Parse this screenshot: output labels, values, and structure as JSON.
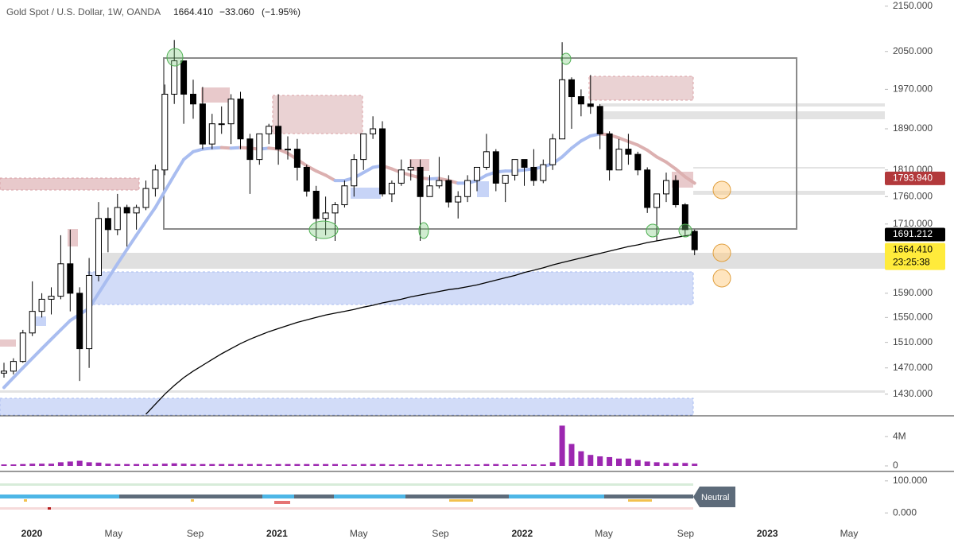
{
  "chart_data": {
    "type": "candlestick",
    "header": {
      "symbol": "Gold Spot / U.S. Dollar, 1W, OANDA",
      "last": "1664.410",
      "change": "−33.060",
      "change_pct": "(−1.95%)"
    },
    "log_scale": true,
    "ylim": [
      1399,
      2164
    ],
    "yticks": [
      {
        "value": 2150,
        "label": "2150.000"
      },
      {
        "value": 2050,
        "label": "2050.000"
      },
      {
        "value": 1970,
        "label": "1970.000"
      },
      {
        "value": 1890,
        "label": "1890.000"
      },
      {
        "value": 1810,
        "label": "1810.000"
      },
      {
        "value": 1760,
        "label": "1760.000"
      },
      {
        "value": 1710,
        "label": "1710.000"
      },
      {
        "value": 1590,
        "label": "1590.000"
      },
      {
        "value": 1550,
        "label": "1550.000"
      },
      {
        "value": 1510,
        "label": "1510.000"
      },
      {
        "value": 1470,
        "label": "1470.000"
      },
      {
        "value": 1430,
        "label": "1430.000"
      }
    ],
    "xticks": [
      "2020",
      "May",
      "Sep",
      "2021",
      "May",
      "Sep",
      "2022",
      "May",
      "Sep",
      "2023",
      "May"
    ],
    "up_color": "#ffffff",
    "down_color": "#000000",
    "ohlc": [
      [
        1462,
        1478,
        1455,
        1465
      ],
      [
        1465,
        1485,
        1460,
        1480
      ],
      [
        1480,
        1530,
        1478,
        1525
      ],
      [
        1525,
        1610,
        1520,
        1560
      ],
      [
        1560,
        1590,
        1550,
        1580
      ],
      [
        1580,
        1600,
        1555,
        1585
      ],
      [
        1585,
        1690,
        1580,
        1640
      ],
      [
        1640,
        1700,
        1560,
        1590
      ],
      [
        1590,
        1600,
        1450,
        1500
      ],
      [
        1500,
        1650,
        1470,
        1620
      ],
      [
        1620,
        1750,
        1610,
        1720
      ],
      [
        1720,
        1740,
        1660,
        1700
      ],
      [
        1700,
        1765,
        1690,
        1740
      ],
      [
        1740,
        1745,
        1670,
        1730
      ],
      [
        1730,
        1745,
        1700,
        1740
      ],
      [
        1740,
        1790,
        1735,
        1775
      ],
      [
        1775,
        1820,
        1760,
        1810
      ],
      [
        1810,
        1980,
        1800,
        1960
      ],
      [
        1960,
        2075,
        1940,
        2030
      ],
      [
        2030,
        2030,
        1900,
        1960
      ],
      [
        1960,
        1990,
        1910,
        1940
      ],
      [
        1940,
        1975,
        1850,
        1860
      ],
      [
        1860,
        1920,
        1850,
        1900
      ],
      [
        1900,
        1935,
        1880,
        1900
      ],
      [
        1900,
        1960,
        1860,
        1950
      ],
      [
        1950,
        1965,
        1850,
        1870
      ],
      [
        1870,
        1880,
        1765,
        1830
      ],
      [
        1830,
        1880,
        1820,
        1880
      ],
      [
        1880,
        1900,
        1860,
        1895
      ],
      [
        1895,
        1960,
        1820,
        1850
      ],
      [
        1850,
        1875,
        1830,
        1850
      ],
      [
        1850,
        1870,
        1790,
        1815
      ],
      [
        1815,
        1820,
        1760,
        1770
      ],
      [
        1770,
        1780,
        1680,
        1720
      ],
      [
        1720,
        1760,
        1690,
        1730
      ],
      [
        1730,
        1750,
        1680,
        1745
      ],
      [
        1745,
        1790,
        1740,
        1780
      ],
      [
        1780,
        1840,
        1760,
        1830
      ],
      [
        1830,
        1880,
        1810,
        1880
      ],
      [
        1880,
        1915,
        1870,
        1890
      ],
      [
        1890,
        1905,
        1760,
        1765
      ],
      [
        1765,
        1790,
        1750,
        1785
      ],
      [
        1785,
        1830,
        1780,
        1810
      ],
      [
        1810,
        1830,
        1790,
        1815
      ],
      [
        1815,
        1830,
        1680,
        1760
      ],
      [
        1760,
        1800,
        1760,
        1780
      ],
      [
        1780,
        1835,
        1775,
        1790
      ],
      [
        1790,
        1800,
        1740,
        1750
      ],
      [
        1750,
        1770,
        1720,
        1760
      ],
      [
        1760,
        1800,
        1750,
        1790
      ],
      [
        1790,
        1815,
        1770,
        1815
      ],
      [
        1815,
        1880,
        1810,
        1845
      ],
      [
        1845,
        1850,
        1770,
        1785
      ],
      [
        1785,
        1800,
        1750,
        1800
      ],
      [
        1800,
        1830,
        1790,
        1830
      ],
      [
        1830,
        1830,
        1780,
        1815
      ],
      [
        1815,
        1850,
        1780,
        1790
      ],
      [
        1790,
        1830,
        1785,
        1820
      ],
      [
        1820,
        1880,
        1810,
        1870
      ],
      [
        1870,
        2070,
        1870,
        1990
      ],
      [
        1990,
        1995,
        1890,
        1955
      ],
      [
        1955,
        1970,
        1915,
        1940
      ],
      [
        1940,
        2000,
        1920,
        1935
      ],
      [
        1935,
        1940,
        1850,
        1880
      ],
      [
        1880,
        1885,
        1790,
        1810
      ],
      [
        1810,
        1870,
        1810,
        1850
      ],
      [
        1850,
        1880,
        1820,
        1840
      ],
      [
        1840,
        1845,
        1800,
        1810
      ],
      [
        1810,
        1815,
        1730,
        1740
      ],
      [
        1740,
        1760,
        1680,
        1765
      ],
      [
        1765,
        1805,
        1750,
        1790
      ],
      [
        1790,
        1800,
        1740,
        1745
      ],
      [
        1745,
        1748,
        1690,
        1700
      ],
      [
        1697,
        1700,
        1655,
        1664.41
      ]
    ],
    "ma": {
      "up_color": "#a9bdf0",
      "down_color": "#dcb0b0",
      "values": [
        1440,
        1455,
        1470,
        1485,
        1500,
        1515,
        1530,
        1545,
        1555,
        1565,
        1590,
        1615,
        1640,
        1665,
        1690,
        1715,
        1740,
        1770,
        1800,
        1830,
        1845,
        1850,
        1852,
        1853,
        1852,
        1853,
        1852,
        1850,
        1852,
        1850,
        1842,
        1830,
        1818,
        1808,
        1800,
        1790,
        1790,
        1795,
        1805,
        1815,
        1818,
        1812,
        1805,
        1800,
        1795,
        1793,
        1794,
        1790,
        1785,
        1785,
        1790,
        1800,
        1806,
        1808,
        1808,
        1810,
        1812,
        1816,
        1822,
        1835,
        1852,
        1866,
        1876,
        1880,
        1878,
        1872,
        1865,
        1858,
        1848,
        1835,
        1825,
        1812,
        1797,
        1785
      ]
    },
    "long_ma": {
      "color": "#000000",
      "values": [
        null,
        null,
        null,
        null,
        null,
        null,
        null,
        null,
        null,
        null,
        null,
        null,
        null,
        null,
        null,
        1400,
        1415,
        1430,
        1443,
        1455,
        1465,
        1474,
        1483,
        1492,
        1500,
        1508,
        1515,
        1521,
        1527,
        1532,
        1537,
        1542,
        1546,
        1550,
        1554,
        1557,
        1560,
        1563,
        1567,
        1570,
        1574,
        1577,
        1580,
        1584,
        1587,
        1590,
        1593,
        1596,
        1598,
        1601,
        1604,
        1608,
        1612,
        1616,
        1620,
        1625,
        1629,
        1633,
        1638,
        1642,
        1646,
        1650,
        1654,
        1658,
        1662,
        1666,
        1670,
        1673,
        1677,
        1680,
        1683,
        1686,
        1689,
        1691.212
      ]
    },
    "price_tags": [
      {
        "value": 1793.94,
        "label": "1793.940",
        "color": "#b2393b",
        "text_color": "#ffffff"
      },
      {
        "value": 1691.212,
        "label": "1691.212",
        "color": "#000000",
        "text_color": "#ffffff"
      },
      {
        "value": 1664.41,
        "label": "1664.410",
        "color": "#ffeb3b",
        "text_color": "#000000",
        "countdown": "23:25:38"
      }
    ],
    "volume": {
      "color": "#9c27b0",
      "ylim": [
        0,
        6.3
      ],
      "yticks": [
        {
          "value": 4,
          "label": "4M"
        },
        0
      ],
      "values": [
        0.2,
        0.2,
        0.25,
        0.3,
        0.3,
        0.3,
        0.5,
        0.6,
        0.7,
        0.5,
        0.45,
        0.3,
        0.25,
        0.25,
        0.25,
        0.25,
        0.25,
        0.3,
        0.35,
        0.3,
        0.25,
        0.25,
        0.25,
        0.25,
        0.25,
        0.25,
        0.25,
        0.25,
        0.2,
        0.25,
        0.25,
        0.25,
        0.25,
        0.25,
        0.25,
        0.25,
        0.2,
        0.2,
        0.25,
        0.25,
        0.25,
        0.2,
        0.2,
        0.2,
        0.25,
        0.2,
        0.2,
        0.2,
        0.2,
        0.2,
        0.2,
        0.25,
        0.25,
        0.2,
        0.2,
        0.2,
        0.2,
        0.2,
        0.5,
        5.5,
        3.0,
        2.0,
        1.5,
        1.3,
        1.2,
        1.0,
        1.0,
        0.8,
        0.6,
        0.5,
        0.4,
        0.4,
        0.4,
        0.3
      ]
    },
    "oscillator": {
      "yticks": [
        {
          "value": 100,
          "label": "100.000"
        },
        {
          "value": 0,
          "label": "0.000"
        }
      ],
      "ylim": [
        -12,
        112
      ],
      "status": "Neutral"
    }
  }
}
